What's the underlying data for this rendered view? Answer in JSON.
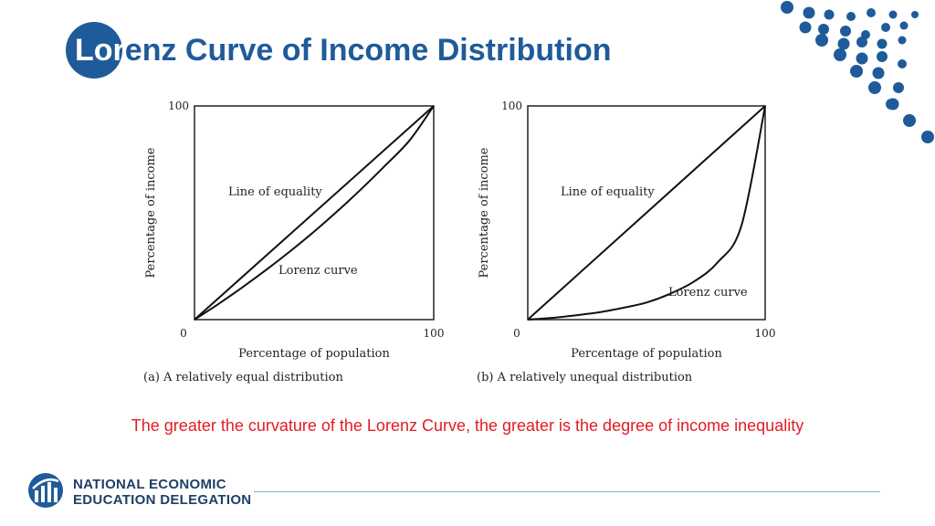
{
  "title": {
    "first": "Lor",
    "rest": "enz Curve of Income Distribution"
  },
  "chart_data": [
    {
      "type": "line",
      "xlabel": "Percentage of population",
      "ylabel": "Percentage of income",
      "xlim": [
        0,
        100
      ],
      "ylim": [
        0,
        100
      ],
      "x_tick_labels": [
        "0",
        "100"
      ],
      "y_tick_labels": [
        "100"
      ],
      "caption": "(a) A relatively equal distribution",
      "series": [
        {
          "name": "Line of equality",
          "x": [
            0,
            100
          ],
          "y": [
            0,
            100
          ]
        },
        {
          "name": "Lorenz curve",
          "x": [
            0,
            10,
            20,
            30,
            40,
            50,
            60,
            70,
            80,
            90,
            100
          ],
          "y": [
            0,
            7.3,
            15.1,
            23.3,
            32.0,
            41.2,
            51.0,
            61.4,
            72.4,
            84.0,
            100
          ]
        }
      ],
      "annotations": [
        "Line of equality",
        "Lorenz curve"
      ]
    },
    {
      "type": "line",
      "xlabel": "Percentage of population",
      "ylabel": "Percentage of income",
      "xlim": [
        0,
        100
      ],
      "ylim": [
        0,
        100
      ],
      "x_tick_labels": [
        "0",
        "100"
      ],
      "y_tick_labels": [
        "100"
      ],
      "caption": "(b) A relatively unequal distribution",
      "series": [
        {
          "name": "Line of equality",
          "x": [
            0,
            100
          ],
          "y": [
            0,
            100
          ]
        },
        {
          "name": "Lorenz curve",
          "x": [
            0,
            10,
            20,
            30,
            40,
            50,
            60,
            70,
            80,
            90,
            100
          ],
          "y": [
            0,
            0.8,
            2.0,
            3.4,
            5.5,
            8.0,
            12.1,
            17.8,
            26.8,
            44.0,
            100
          ]
        }
      ],
      "annotations": [
        "Line of equality",
        "Lorenz curve"
      ]
    }
  ],
  "note": "The greater the curvature of the Lorenz Curve, the greater is the degree of income inequality",
  "footer": {
    "org_line1": "NATIONAL ECONOMIC",
    "org_line2": "EDUCATION DELEGATION"
  },
  "colors": {
    "brand": "#1f5b9a",
    "note": "#e31b23",
    "dots": "#1f5b9a",
    "logo_text": "#1f3f66"
  }
}
